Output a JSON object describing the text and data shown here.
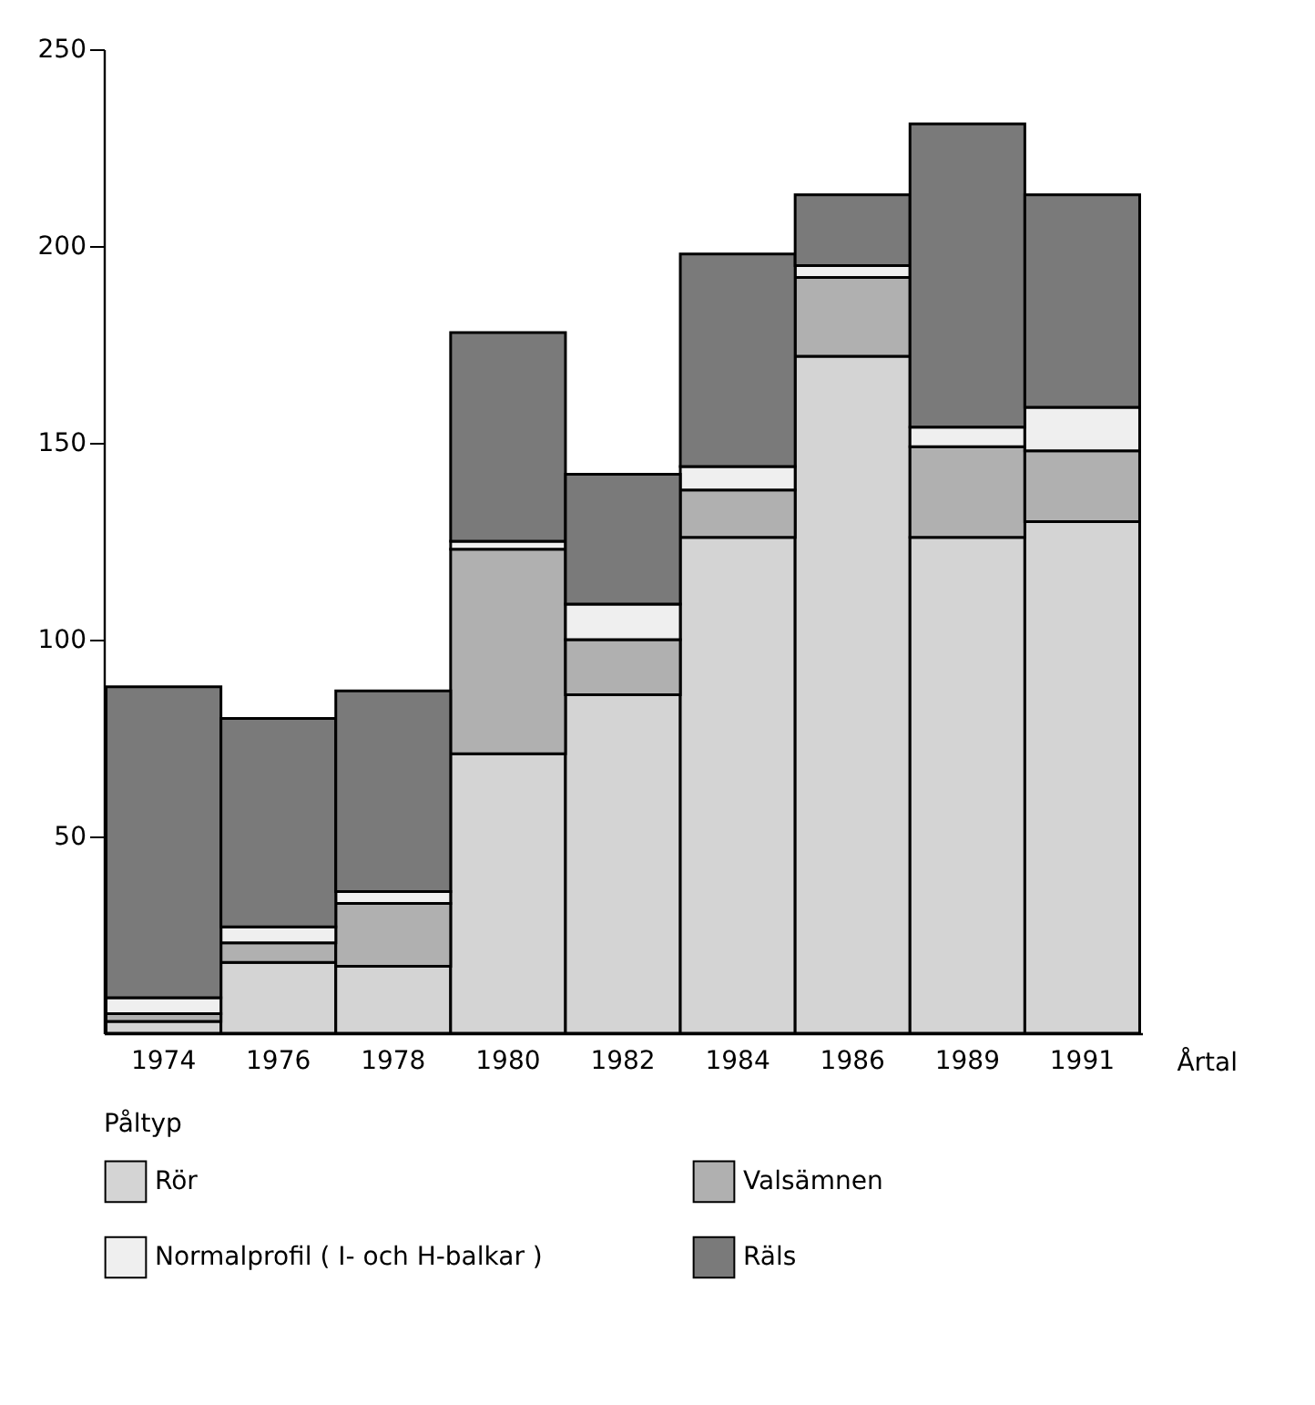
{
  "chart_data": {
    "type": "bar",
    "stacked": true,
    "xlabel": "Årtal",
    "legend_title": "Påltyp",
    "legend": "bottom",
    "categories": [
      "1974",
      "1976",
      "1978",
      "1980",
      "1982",
      "1984",
      "1986",
      "1989",
      "1991"
    ],
    "ylim": [
      0,
      250
    ],
    "yticks": [
      50,
      100,
      150,
      200,
      250
    ],
    "grid": false,
    "series": [
      {
        "name": "Rör",
        "color": "#d4d4d4",
        "values": [
          3,
          18,
          17,
          71,
          86,
          126,
          172,
          126,
          130
        ]
      },
      {
        "name": "Valsämnen",
        "color": "#b0b0b0",
        "values": [
          2,
          5,
          16,
          52,
          14,
          12,
          20,
          23,
          18
        ]
      },
      {
        "name": "Normalprofil ( I- och H-balkar )",
        "color": "#efefef",
        "values": [
          4,
          4,
          3,
          2,
          9,
          6,
          3,
          5,
          11
        ]
      },
      {
        "name": "Räls",
        "color": "#7a7a7a",
        "values": [
          79,
          53,
          51,
          53,
          33,
          54,
          18,
          77,
          54
        ]
      }
    ]
  }
}
